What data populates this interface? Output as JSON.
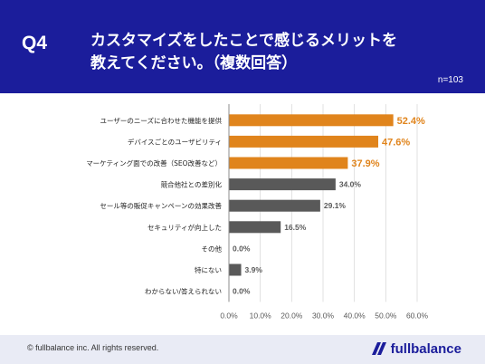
{
  "header": {
    "question": "Q4",
    "title_line1": "カスタマイズをしたことで感じるメリットを",
    "title_line2": "教えてください。（複数回答）",
    "n": "n=103"
  },
  "colors": {
    "header_bg": "#1b1d9b",
    "highlight": "#e0841c",
    "default_bar": "#595959"
  },
  "chart_data": {
    "type": "bar",
    "orientation": "horizontal",
    "categories": [
      "ユーザーのニーズに合わせた機能を提供",
      "デバイスごとのユーザビリティ",
      "マーケティング面での改善（SEO改善など）",
      "競合他社との差別化",
      "セール等の販促キャンペーンの効果改善",
      "セキュリティが向上した",
      "その他",
      "特にない",
      "わからない/答えられない"
    ],
    "values": [
      52.4,
      47.6,
      37.9,
      34.0,
      29.1,
      16.5,
      0.0,
      3.9,
      0.0
    ],
    "value_labels": [
      "52.4%",
      "47.6%",
      "37.9%",
      "34.0%",
      "29.1%",
      "16.5%",
      "0.0%",
      "3.9%",
      "0.0%"
    ],
    "highlighted": [
      true,
      true,
      true,
      false,
      false,
      false,
      false,
      false,
      false
    ],
    "xlim": [
      0,
      60
    ],
    "xticks": [
      "0.0%",
      "10.0%",
      "20.0%",
      "30.0%",
      "40.0%",
      "50.0%",
      "60.0%"
    ],
    "grid": true
  },
  "footer": {
    "copyright": "© fullbalance inc. All rights reserved.",
    "logo_text": "fullbalance",
    "logo_icon": "fullbalance-logo-icon"
  }
}
